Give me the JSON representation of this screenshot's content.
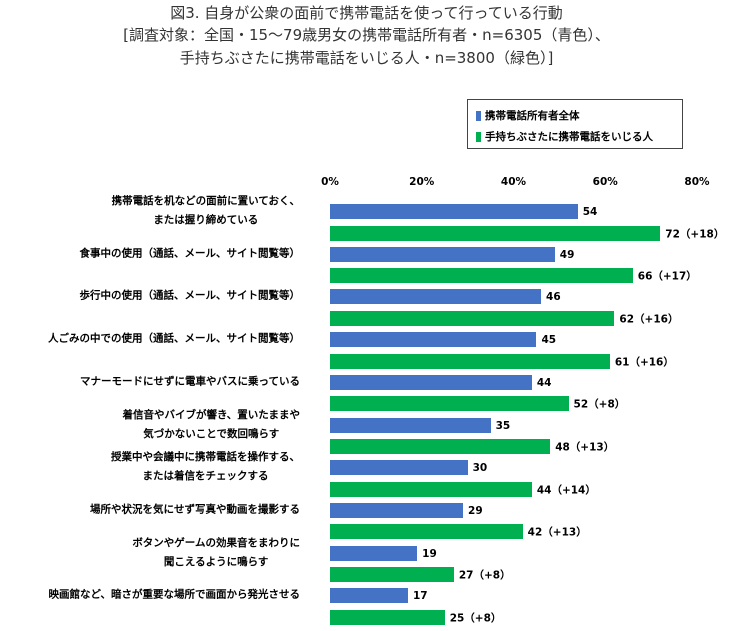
{
  "chart_data": {
    "type": "bar",
    "orientation": "horizontal",
    "title": "図3. 自身が公衆の面前で携帯電話を使って行っている行動",
    "subtitle_lines": [
      "[調査対象：全国・15～79歳男女の携帯電話所有者・n=6305（青色）、",
      "手持ちぶさたに携帯電話をいじる人・n=3800（緑色）]"
    ],
    "xlim": [
      0,
      80
    ],
    "x_ticks": [
      "0%",
      "20%",
      "40%",
      "60%",
      "80%"
    ],
    "grid": false,
    "legend_placement": "top-right",
    "categories": [
      "携帯電話を机などの面前に置いておく、\nまたは握り締めている",
      "食事中の使用（通話、メール、サイト閲覧等）",
      "歩行中の使用（通話、メール、サイト閲覧等）",
      "人ごみの中での使用（通話、メール、サイト閲覧等）",
      "マナーモードにせずに電車やバスに乗っている",
      "着信音やバイブが響き、置いたままや\n気づかないことで数回鳴らす",
      "授業中や会議中に携帯電話を操作する、\nまたは着信をチェックする",
      "場所や状況を気にせず写真や動画を撮影する",
      "ボタンやゲームの効果音をまわりに\n聞こえるように鳴らす",
      "映画館など、暗さが重要な場所で画面から発光させる"
    ],
    "series": [
      {
        "name": "携帯電話所有者全体",
        "color": "#4472C4",
        "values": [
          54,
          49,
          46,
          45,
          44,
          35,
          30,
          29,
          19,
          17
        ],
        "labels": [
          "54",
          "49",
          "46",
          "45",
          "44",
          "35",
          "30",
          "29",
          "19",
          "17"
        ]
      },
      {
        "name": "手持ちぶさたに携帯電話をいじる人",
        "color": "#00B050",
        "values": [
          72,
          66,
          62,
          61,
          52,
          48,
          44,
          42,
          27,
          25
        ],
        "labels": [
          "72（+18）",
          "66（+17）",
          "62（+16）",
          "61（+16）",
          "52（+8）",
          "48（+13）",
          "44（+14）",
          "42（+13）",
          "27（+8）",
          "25（+8）"
        ]
      }
    ]
  }
}
